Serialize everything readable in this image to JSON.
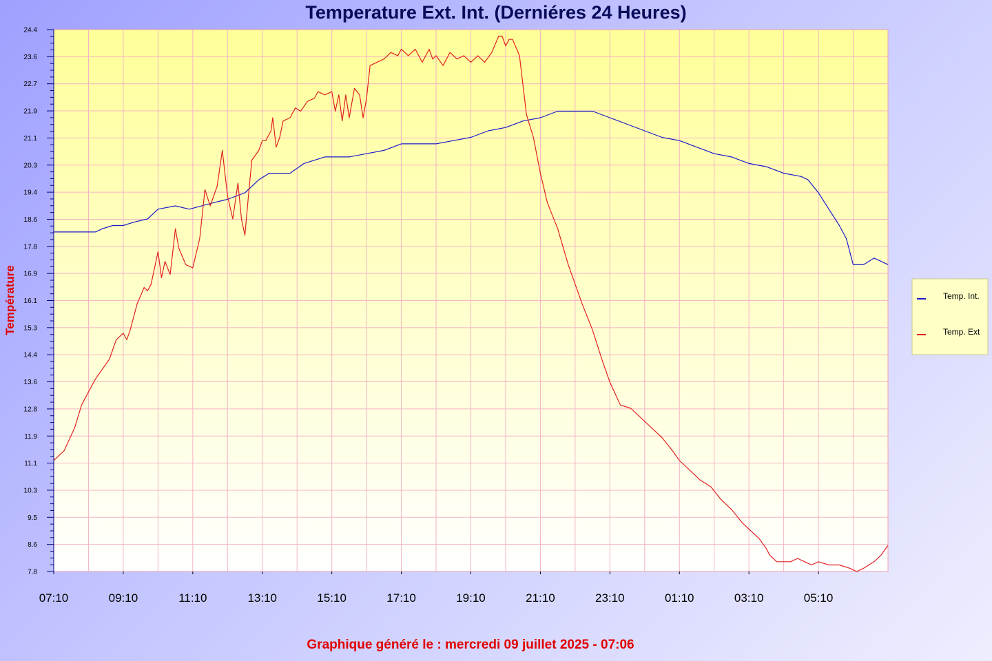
{
  "chart_data": {
    "type": "line",
    "title": "Temperature Ext. Int. (Derniéres 24 Heures)",
    "ylabel": "Température",
    "footer": "Graphique généré le : mercredi 09 juillet 2025 - 07:06",
    "ylim": [
      7.8,
      24.4
    ],
    "y_ticks": [
      "24.4",
      "23.6",
      "22.7",
      "21.9",
      "21.1",
      "20.3",
      "19.4",
      "18.6",
      "17.8",
      "16.9",
      "16.1",
      "15.3",
      "14.4",
      "13.6",
      "12.8",
      "11.9",
      "11.1",
      "10.3",
      "9.5",
      "8.6",
      "7.8"
    ],
    "x_ticks": [
      "07:10",
      "09:10",
      "11:10",
      "13:10",
      "15:10",
      "17:10",
      "19:10",
      "21:10",
      "23:10",
      "01:10",
      "03:10",
      "05:10"
    ],
    "x_range_hours": [
      0,
      24
    ],
    "grid": true,
    "legend_position": "right",
    "colors": {
      "plot_top": "#ffff99",
      "plot_bottom": "#ffffff",
      "grid": "#f4b4c4",
      "int": "#1a1acc",
      "ext": "#e02020",
      "legend_bg": "#ffffc6"
    },
    "series": [
      {
        "name": "Temp. Int.",
        "color": "#1a1acc",
        "points": [
          [
            0,
            18.2
          ],
          [
            1.2,
            18.2
          ],
          [
            1.4,
            18.3
          ],
          [
            1.7,
            18.4
          ],
          [
            2.0,
            18.4
          ],
          [
            2.3,
            18.5
          ],
          [
            2.7,
            18.6
          ],
          [
            3.0,
            18.9
          ],
          [
            3.5,
            19.0
          ],
          [
            3.9,
            18.9
          ],
          [
            4.6,
            19.1
          ],
          [
            5.0,
            19.2
          ],
          [
            5.5,
            19.4
          ],
          [
            5.9,
            19.8
          ],
          [
            6.2,
            20.0
          ],
          [
            6.8,
            20.0
          ],
          [
            7.2,
            20.3
          ],
          [
            7.8,
            20.5
          ],
          [
            8.5,
            20.5
          ],
          [
            9.0,
            20.6
          ],
          [
            9.5,
            20.7
          ],
          [
            10.0,
            20.9
          ],
          [
            11.0,
            20.9
          ],
          [
            11.5,
            21.0
          ],
          [
            12.0,
            21.1
          ],
          [
            12.5,
            21.3
          ],
          [
            13.0,
            21.4
          ],
          [
            13.5,
            21.6
          ],
          [
            14.0,
            21.7
          ],
          [
            14.5,
            21.9
          ],
          [
            15.5,
            21.9
          ],
          [
            16.0,
            21.7
          ],
          [
            16.5,
            21.5
          ],
          [
            17.0,
            21.3
          ],
          [
            17.5,
            21.1
          ],
          [
            18.0,
            21.0
          ],
          [
            18.5,
            20.8
          ],
          [
            19.0,
            20.6
          ],
          [
            19.5,
            20.5
          ],
          [
            20.0,
            20.3
          ],
          [
            20.5,
            20.2
          ],
          [
            21.0,
            20.0
          ],
          [
            21.5,
            19.9
          ],
          [
            21.7,
            19.8
          ],
          [
            22.0,
            19.4
          ],
          [
            22.3,
            18.9
          ],
          [
            22.6,
            18.4
          ],
          [
            22.8,
            18.0
          ],
          [
            23.0,
            17.2
          ],
          [
            23.3,
            17.2
          ],
          [
            23.6,
            17.4
          ],
          [
            23.8,
            17.3
          ],
          [
            24.0,
            17.2
          ]
        ]
      },
      {
        "name": "Temp. Ext",
        "color": "#e02020",
        "points": [
          [
            0,
            11.2
          ],
          [
            0.3,
            11.5
          ],
          [
            0.6,
            12.2
          ],
          [
            0.8,
            12.9
          ],
          [
            1.0,
            13.3
          ],
          [
            1.2,
            13.7
          ],
          [
            1.4,
            14.0
          ],
          [
            1.6,
            14.3
          ],
          [
            1.8,
            14.9
          ],
          [
            2.0,
            15.1
          ],
          [
            2.1,
            14.9
          ],
          [
            2.2,
            15.2
          ],
          [
            2.4,
            16.0
          ],
          [
            2.6,
            16.5
          ],
          [
            2.7,
            16.4
          ],
          [
            2.8,
            16.6
          ],
          [
            3.0,
            17.6
          ],
          [
            3.1,
            16.8
          ],
          [
            3.2,
            17.3
          ],
          [
            3.35,
            16.9
          ],
          [
            3.5,
            18.3
          ],
          [
            3.6,
            17.7
          ],
          [
            3.8,
            17.2
          ],
          [
            4.0,
            17.1
          ],
          [
            4.2,
            18.0
          ],
          [
            4.35,
            19.5
          ],
          [
            4.5,
            19.0
          ],
          [
            4.7,
            19.6
          ],
          [
            4.85,
            20.7
          ],
          [
            5.0,
            19.3
          ],
          [
            5.15,
            18.6
          ],
          [
            5.3,
            19.7
          ],
          [
            5.4,
            18.6
          ],
          [
            5.5,
            18.1
          ],
          [
            5.6,
            19.3
          ],
          [
            5.7,
            20.4
          ],
          [
            5.9,
            20.7
          ],
          [
            6.0,
            21.0
          ],
          [
            6.1,
            21.0
          ],
          [
            6.25,
            21.3
          ],
          [
            6.3,
            21.7
          ],
          [
            6.4,
            20.8
          ],
          [
            6.5,
            21.1
          ],
          [
            6.6,
            21.6
          ],
          [
            6.8,
            21.7
          ],
          [
            6.95,
            22.0
          ],
          [
            7.1,
            21.9
          ],
          [
            7.3,
            22.2
          ],
          [
            7.5,
            22.3
          ],
          [
            7.6,
            22.5
          ],
          [
            7.8,
            22.4
          ],
          [
            8.0,
            22.5
          ],
          [
            8.1,
            21.9
          ],
          [
            8.2,
            22.4
          ],
          [
            8.3,
            21.6
          ],
          [
            8.4,
            22.4
          ],
          [
            8.5,
            21.7
          ],
          [
            8.65,
            22.6
          ],
          [
            8.8,
            22.4
          ],
          [
            8.9,
            21.7
          ],
          [
            9.0,
            22.3
          ],
          [
            9.1,
            23.3
          ],
          [
            9.3,
            23.4
          ],
          [
            9.5,
            23.5
          ],
          [
            9.7,
            23.7
          ],
          [
            9.9,
            23.6
          ],
          [
            10.0,
            23.8
          ],
          [
            10.2,
            23.6
          ],
          [
            10.4,
            23.8
          ],
          [
            10.6,
            23.4
          ],
          [
            10.8,
            23.8
          ],
          [
            10.9,
            23.5
          ],
          [
            11.0,
            23.6
          ],
          [
            11.2,
            23.3
          ],
          [
            11.4,
            23.7
          ],
          [
            11.6,
            23.5
          ],
          [
            11.8,
            23.6
          ],
          [
            12.0,
            23.4
          ],
          [
            12.2,
            23.6
          ],
          [
            12.4,
            23.4
          ],
          [
            12.6,
            23.7
          ],
          [
            12.8,
            24.2
          ],
          [
            12.9,
            24.2
          ],
          [
            13.0,
            23.9
          ],
          [
            13.1,
            24.1
          ],
          [
            13.2,
            24.1
          ],
          [
            13.4,
            23.6
          ],
          [
            13.6,
            21.8
          ],
          [
            13.8,
            21.1
          ],
          [
            14.0,
            20.0
          ],
          [
            14.2,
            19.1
          ],
          [
            14.5,
            18.3
          ],
          [
            14.8,
            17.2
          ],
          [
            15.2,
            16.0
          ],
          [
            15.5,
            15.2
          ],
          [
            15.8,
            14.2
          ],
          [
            16.0,
            13.6
          ],
          [
            16.3,
            12.9
          ],
          [
            16.6,
            12.8
          ],
          [
            16.9,
            12.5
          ],
          [
            17.2,
            12.2
          ],
          [
            17.5,
            11.9
          ],
          [
            17.8,
            11.5
          ],
          [
            18.0,
            11.2
          ],
          [
            18.3,
            10.9
          ],
          [
            18.6,
            10.6
          ],
          [
            18.9,
            10.4
          ],
          [
            19.2,
            10.0
          ],
          [
            19.5,
            9.7
          ],
          [
            19.8,
            9.3
          ],
          [
            20.0,
            9.1
          ],
          [
            20.3,
            8.8
          ],
          [
            20.5,
            8.5
          ],
          [
            20.6,
            8.3
          ],
          [
            20.8,
            8.1
          ],
          [
            21.0,
            8.1
          ],
          [
            21.2,
            8.1
          ],
          [
            21.4,
            8.2
          ],
          [
            21.6,
            8.1
          ],
          [
            21.8,
            8.0
          ],
          [
            22.0,
            8.1
          ],
          [
            22.3,
            8.0
          ],
          [
            22.6,
            8.0
          ],
          [
            22.9,
            7.9
          ],
          [
            23.1,
            7.8
          ],
          [
            23.3,
            7.9
          ],
          [
            23.6,
            8.1
          ],
          [
            23.8,
            8.3
          ],
          [
            24.0,
            8.6
          ]
        ]
      }
    ]
  }
}
